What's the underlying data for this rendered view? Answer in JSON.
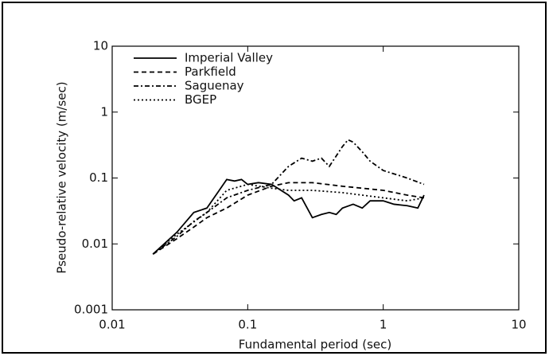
{
  "chart_data": {
    "type": "line",
    "xlabel": "Fundamental period  (sec)",
    "ylabel": "Pseudo-relative velocity  (m/sec)",
    "xscale": "log",
    "yscale": "log",
    "xlim": [
      0.01,
      10
    ],
    "xticks": [
      0.01,
      0.1,
      1,
      10
    ],
    "ylim": [
      0.001,
      10
    ],
    "yticks": [
      0.001,
      0.01,
      0.1,
      1,
      10
    ],
    "legend": "upper left",
    "series": [
      {
        "name": "Imperial Valley",
        "color": "#000000",
        "style": "solid",
        "x": [
          0.02,
          0.03,
          0.04,
          0.05,
          0.06,
          0.07,
          0.08,
          0.09,
          0.1,
          0.12,
          0.15,
          0.2,
          0.22,
          0.25,
          0.3,
          0.35,
          0.4,
          0.45,
          0.5,
          0.6,
          0.7,
          0.8,
          1.0,
          1.2,
          1.5,
          1.8,
          2.0
        ],
        "values": [
          0.007,
          0.015,
          0.03,
          0.035,
          0.06,
          0.095,
          0.09,
          0.095,
          0.08,
          0.085,
          0.08,
          0.055,
          0.045,
          0.05,
          0.025,
          0.028,
          0.03,
          0.028,
          0.035,
          0.04,
          0.035,
          0.045,
          0.045,
          0.04,
          0.038,
          0.035,
          0.055
        ]
      },
      {
        "name": "Parkfield",
        "color": "#000000",
        "style": "dashed",
        "x": [
          0.02,
          0.03,
          0.04,
          0.05,
          0.07,
          0.1,
          0.15,
          0.2,
          0.3,
          0.5,
          0.7,
          1.0,
          1.5,
          2.0
        ],
        "values": [
          0.007,
          0.012,
          0.018,
          0.025,
          0.035,
          0.055,
          0.075,
          0.085,
          0.085,
          0.075,
          0.07,
          0.065,
          0.055,
          0.05
        ]
      },
      {
        "name": "Saguenay",
        "color": "#000000",
        "style": "dashdot",
        "x": [
          0.02,
          0.03,
          0.04,
          0.05,
          0.07,
          0.1,
          0.15,
          0.2,
          0.25,
          0.3,
          0.35,
          0.4,
          0.5,
          0.55,
          0.6,
          0.7,
          0.8,
          1.0,
          1.5,
          2.0
        ],
        "values": [
          0.007,
          0.013,
          0.022,
          0.03,
          0.05,
          0.065,
          0.08,
          0.15,
          0.2,
          0.18,
          0.2,
          0.15,
          0.3,
          0.38,
          0.35,
          0.25,
          0.18,
          0.13,
          0.1,
          0.08
        ]
      },
      {
        "name": "BGEP",
        "color": "#000000",
        "style": "dotted",
        "x": [
          0.02,
          0.03,
          0.05,
          0.07,
          0.1,
          0.15,
          0.2,
          0.3,
          0.5,
          0.7,
          1.0,
          1.5,
          2.0
        ],
        "values": [
          0.007,
          0.014,
          0.03,
          0.065,
          0.08,
          0.07,
          0.065,
          0.065,
          0.06,
          0.055,
          0.05,
          0.045,
          0.05
        ]
      }
    ]
  }
}
